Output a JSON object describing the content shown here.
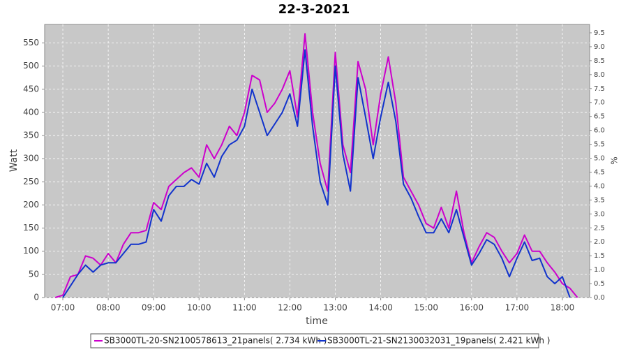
{
  "chart_data": {
    "type": "line",
    "title": "22-3-2021",
    "xlabel": "time",
    "ylabel": "Watt",
    "y2label": "%",
    "x": [
      "06:50",
      "07:00",
      "07:10",
      "07:20",
      "07:30",
      "07:40",
      "07:50",
      "08:00",
      "08:10",
      "08:20",
      "08:30",
      "08:40",
      "08:50",
      "09:00",
      "09:10",
      "09:20",
      "09:30",
      "09:40",
      "09:50",
      "10:00",
      "10:10",
      "10:20",
      "10:30",
      "10:40",
      "10:50",
      "11:00",
      "11:10",
      "11:20",
      "11:30",
      "11:40",
      "11:50",
      "12:00",
      "12:10",
      "12:20",
      "12:30",
      "12:40",
      "12:50",
      "13:00",
      "13:10",
      "13:20",
      "13:30",
      "13:40",
      "13:50",
      "14:00",
      "14:10",
      "14:20",
      "14:30",
      "14:40",
      "14:50",
      "15:00",
      "15:10",
      "15:20",
      "15:30",
      "15:40",
      "15:50",
      "16:00",
      "16:10",
      "16:20",
      "16:30",
      "16:40",
      "16:50",
      "17:00",
      "17:10",
      "17:20",
      "17:30",
      "17:40",
      "17:50",
      "18:00",
      "18:10",
      "18:20"
    ],
    "series": [
      {
        "name": "SB3000TL-20-SN2100578613_21panels( 2.734 kWh )",
        "color": "#cc00cc",
        "values": [
          0,
          5,
          45,
          50,
          90,
          85,
          70,
          95,
          75,
          115,
          140,
          140,
          145,
          205,
          190,
          240,
          255,
          270,
          280,
          260,
          330,
          300,
          330,
          370,
          350,
          400,
          480,
          470,
          400,
          420,
          450,
          490,
          390,
          570,
          400,
          290,
          230,
          530,
          330,
          270,
          510,
          450,
          330,
          440,
          520,
          420,
          260,
          230,
          200,
          160,
          150,
          195,
          150,
          230,
          140,
          75,
          110,
          140,
          130,
          100,
          75,
          95,
          135,
          100,
          100,
          75,
          55,
          30,
          20,
          0
        ]
      },
      {
        "name": "SB3000TL-21-SN2130032031_19panels( 2.421 kWh )",
        "color": "#1133cc",
        "values": [
          null,
          0,
          25,
          50,
          70,
          55,
          70,
          75,
          75,
          95,
          115,
          115,
          120,
          190,
          165,
          220,
          240,
          240,
          255,
          245,
          290,
          260,
          305,
          330,
          340,
          370,
          450,
          400,
          350,
          375,
          400,
          440,
          370,
          535,
          370,
          250,
          200,
          500,
          310,
          230,
          475,
          390,
          300,
          390,
          465,
          380,
          245,
          215,
          175,
          140,
          140,
          170,
          140,
          190,
          130,
          70,
          95,
          125,
          115,
          85,
          45,
          85,
          120,
          80,
          85,
          45,
          30,
          45,
          0,
          null
        ]
      }
    ],
    "xlim": [
      "06:36",
      "18:36"
    ],
    "xticks": [
      "07:00",
      "08:00",
      "09:00",
      "10:00",
      "11:00",
      "12:00",
      "13:00",
      "14:00",
      "15:00",
      "16:00",
      "17:00",
      "18:00"
    ],
    "ylim": [
      0,
      590
    ],
    "yticks": [
      0,
      50,
      100,
      150,
      200,
      250,
      300,
      350,
      400,
      450,
      500,
      550
    ],
    "y2lim": [
      0,
      9.8
    ],
    "y2ticks": [
      {
        "value": 0,
        "label": "0.0"
      },
      0.5,
      {
        "value": 1,
        "label": "1.0"
      },
      1.5,
      {
        "value": 2,
        "label": "2.0"
      },
      2.5,
      {
        "value": 3,
        "label": "3.0"
      },
      3.5,
      {
        "value": 4,
        "label": "4.0"
      },
      4.5,
      {
        "value": 5,
        "label": "5.0"
      },
      5.5,
      {
        "value": 6,
        "label": "6.0"
      },
      6.5,
      {
        "value": 7,
        "label": "7.0"
      },
      7.5,
      {
        "value": 8,
        "label": "8.0"
      },
      8.5,
      {
        "value": 9,
        "label": "9.0"
      },
      9.5
    ],
    "grid": true
  }
}
